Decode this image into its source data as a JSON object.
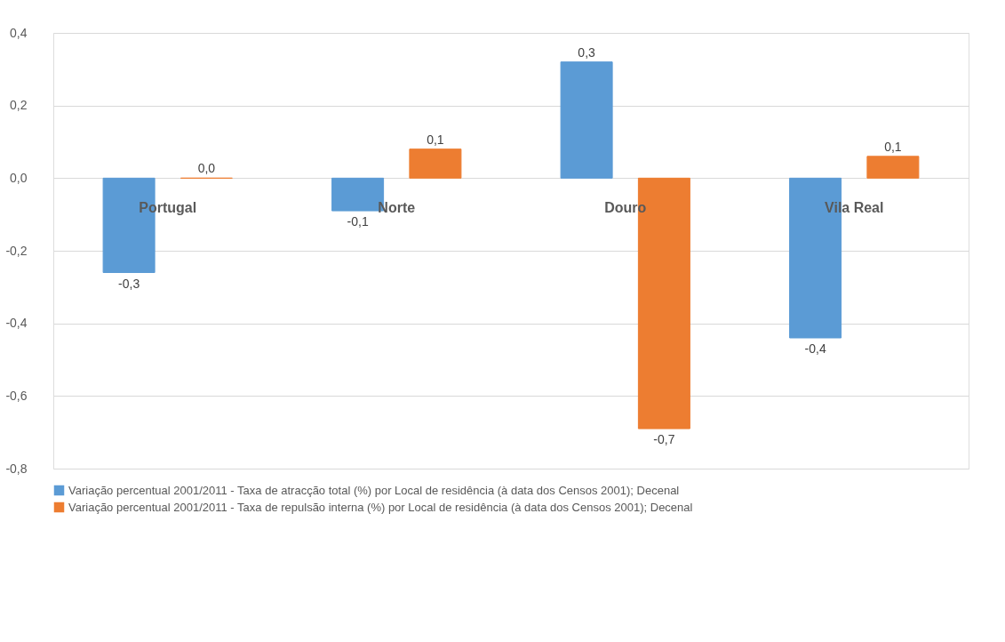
{
  "chart_data": {
    "type": "bar",
    "categories": [
      "Portugal",
      "Norte",
      "Douro",
      "Vila Real"
    ],
    "series": [
      {
        "name": "Variação percentual 2001/2011 - Taxa de atracção total (%) por Local de residência (à data dos Censos 2001); Decenal",
        "color": "#5b9bd5",
        "values": [
          -0.26,
          -0.09,
          0.32,
          -0.44
        ],
        "value_labels": [
          "-0,3",
          "-0,1",
          "0,3",
          "-0,4"
        ]
      },
      {
        "name": "Variação percentual 2001/2011 - Taxa de repulsão interna (%) por Local de residência (à data dos Censos 2001); Decenal",
        "color": "#ed7d31",
        "values": [
          0.0,
          0.08,
          -0.69,
          0.06
        ],
        "value_labels": [
          "0,0",
          "0,1",
          "-0,7",
          "0,1"
        ]
      }
    ],
    "ylim": [
      -0.8,
      0.4
    ],
    "yticks": [
      {
        "value": -0.8,
        "label": "-0,8"
      },
      {
        "value": -0.6,
        "label": "-0,6"
      },
      {
        "value": -0.4,
        "label": "-0,4"
      },
      {
        "value": -0.2,
        "label": "-0,2"
      },
      {
        "value": 0,
        "label": "0,0"
      },
      {
        "value": 0.2,
        "label": "0,2"
      },
      {
        "value": 0.4,
        "label": "0,4"
      }
    ],
    "grid": "y",
    "legend": "bottom"
  }
}
